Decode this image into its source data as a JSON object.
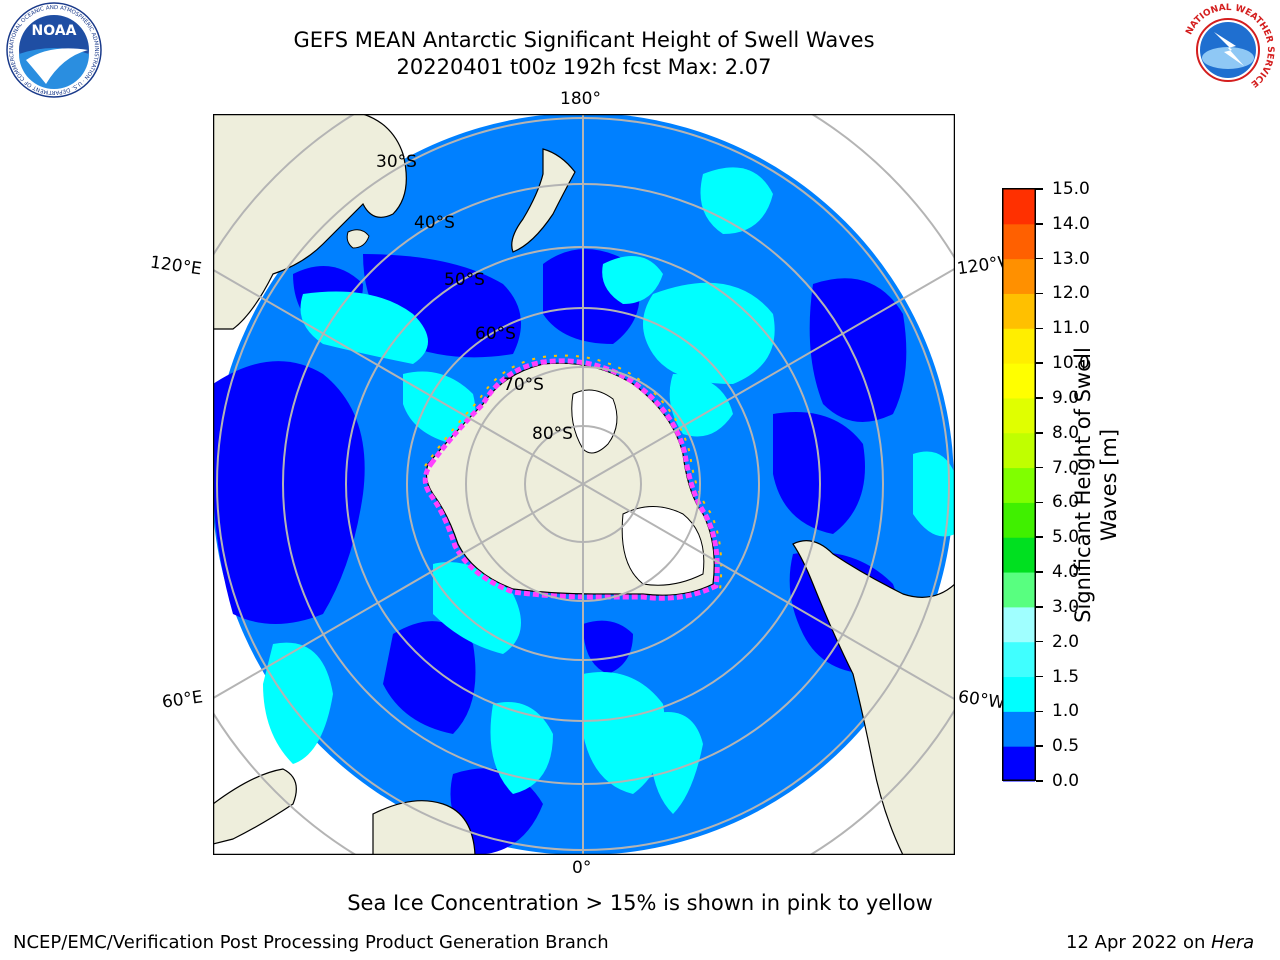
{
  "header": {
    "title_line1": "GEFS MEAN Antarctic Significant Height of Swell Waves",
    "title_line2": "20220401 t00z 192h fcst   Max: 2.07"
  },
  "logos": {
    "left": {
      "text": "NOAA",
      "ring_text": "NATIONAL OCEANIC AND ATMOSPHERIC ADMINISTRATION · U.S. DEPARTMENT OF COMMERCE"
    },
    "right": {
      "ring_text": "NATIONAL WEATHER SERVICE"
    }
  },
  "map": {
    "lon_labels": {
      "top": "180°",
      "bottom": "0°",
      "left_upper": "120°E",
      "left_lower": "60°E",
      "right_upper": "120°W",
      "right_lower": "60°W"
    },
    "lat_labels": [
      "30°S",
      "40°S",
      "50°S",
      "60°S",
      "70°S",
      "80°S"
    ],
    "colors": {
      "land": "#eeeedc",
      "ocean_0_5": "#0000ff",
      "ocean_0_5_1_0": "#0080ff",
      "ocean_1_0_1_5": "#00ffff",
      "ice": "#ff00ff",
      "grid": "#b4b4b4"
    }
  },
  "colorbar": {
    "label": "Significant Height of Swell Waves [m]",
    "ticks": [
      "15.0",
      "14.0",
      "13.0",
      "12.0",
      "11.0",
      "10.0",
      "9.0",
      "8.0",
      "7.0",
      "6.0",
      "5.0",
      "4.0",
      "3.0",
      "2.0",
      "1.5",
      "1.0",
      "0.5",
      "0.0"
    ],
    "colors": [
      "#0000ff",
      "#0080ff",
      "#00ffff",
      "#40ffff",
      "#a0ffff",
      "#58ff80",
      "#00e020",
      "#40f000",
      "#80ff00",
      "#c0ff00",
      "#e0ff00",
      "#ffff00",
      "#ffee00",
      "#ffc000",
      "#ff9000",
      "#ff6000",
      "#ff3000",
      "#ff0000"
    ]
  },
  "footer": {
    "caption": "Sea Ice Concentration > 15% is shown in pink to yellow",
    "left": "NCEP/EMC/Verification Post Processing Product Generation Branch",
    "right_date": "12 Apr 2022 on ",
    "right_host": "Hera"
  }
}
